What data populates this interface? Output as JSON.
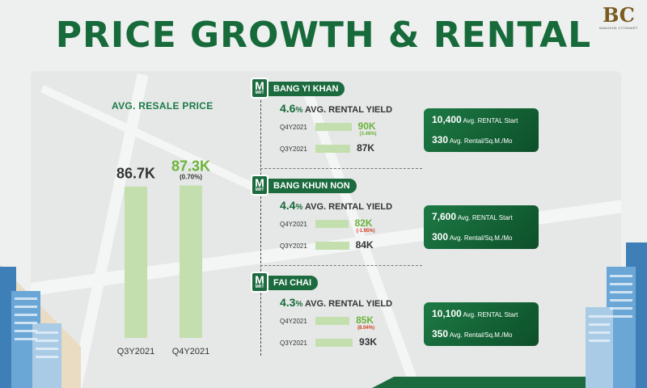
{
  "title": "PRICE GROWTH & RENTAL",
  "logo": {
    "mark": "BC",
    "sub": "BANGKOK CITISMART"
  },
  "resale": {
    "title": "AVG. RESALE PRICE"
  },
  "chart_data": [
    {
      "type": "bar",
      "title": "AVG. RESALE PRICE",
      "categories": [
        "Q3Y2021",
        "Q4Y2021"
      ],
      "values": [
        86.7,
        87.3
      ],
      "labels": [
        "86.7K",
        "87.3K"
      ],
      "change_labels": [
        "",
        "(0.70%)"
      ],
      "value_colors": [
        "#333333",
        "#6bb33a"
      ],
      "bar_color": "#c4dfae",
      "ylim": [
        0,
        100
      ]
    },
    {
      "type": "bar",
      "title": "BANG YI KHAN",
      "categories": [
        "Q4Y2021",
        "Q3Y2021"
      ],
      "values": [
        90,
        87
      ],
      "labels": [
        "90K",
        "87K"
      ],
      "change_labels": [
        "(3.48%)",
        ""
      ]
    },
    {
      "type": "bar",
      "title": "BANG KHUN NON",
      "categories": [
        "Q4Y2021",
        "Q3Y2021"
      ],
      "values": [
        82,
        84
      ],
      "labels": [
        "82K",
        "84K"
      ],
      "change_labels": [
        "(-1.95%)",
        ""
      ]
    },
    {
      "type": "bar",
      "title": "FAI CHAI",
      "categories": [
        "Q4Y2021",
        "Q3Y2021"
      ],
      "values": [
        85,
        93
      ],
      "labels": [
        "85K",
        "93K"
      ],
      "change_labels": [
        "(8.04%)",
        ""
      ]
    }
  ],
  "stations": [
    {
      "badge_m": "M",
      "badge_t": "MRT",
      "name": "BANG YI KHAN",
      "yield_value": "4.6",
      "yield_unit": "%",
      "yield_label": "AVG. RENTAL YIELD",
      "rows": [
        {
          "quarter": "Q4Y2021",
          "value": 90,
          "label": "90K",
          "change": "(3.48%)",
          "trend": "up"
        },
        {
          "quarter": "Q3Y2021",
          "value": 87,
          "label": "87K",
          "change": "",
          "trend": ""
        }
      ],
      "rent_start_value": "10,400",
      "rent_start_label": "Avg. RENTAL Start",
      "rent_sqm_value": "330",
      "rent_sqm_label": "Avg. Rental/Sq.M./Mo"
    },
    {
      "badge_m": "M",
      "badge_t": "MRT",
      "name": "BANG KHUN NON",
      "yield_value": "4.4",
      "yield_unit": "%",
      "yield_label": "AVG. RENTAL YIELD",
      "rows": [
        {
          "quarter": "Q4Y2021",
          "value": 82,
          "label": "82K",
          "change": "(-1.95%)",
          "trend": "down"
        },
        {
          "quarter": "Q3Y2021",
          "value": 84,
          "label": "84K",
          "change": "",
          "trend": ""
        }
      ],
      "rent_start_value": "7,600",
      "rent_start_label": "Avg. RENTAL Start",
      "rent_sqm_value": "300",
      "rent_sqm_label": "Avg. Rental/Sq.M./Mo"
    },
    {
      "badge_m": "M",
      "badge_t": "MRT",
      "name": "FAI CHAI",
      "yield_value": "4.3",
      "yield_unit": "%",
      "yield_label": "AVG. RENTAL YIELD",
      "rows": [
        {
          "quarter": "Q4Y2021",
          "value": 85,
          "label": "85K",
          "change": "(8.04%)",
          "trend": "down"
        },
        {
          "quarter": "Q3Y2021",
          "value": 93,
          "label": "93K",
          "change": "",
          "trend": ""
        }
      ],
      "rent_start_value": "10,100",
      "rent_start_label": "Avg. RENTAL Start",
      "rent_sqm_value": "350",
      "rent_sqm_label": "Avg. Rental/Sq.M./Mo"
    }
  ],
  "colors": {
    "brand_green": "#176a3a",
    "bar_green": "#c4dfae",
    "value_green": "#6bb33a",
    "negative_red": "#d0401f"
  }
}
